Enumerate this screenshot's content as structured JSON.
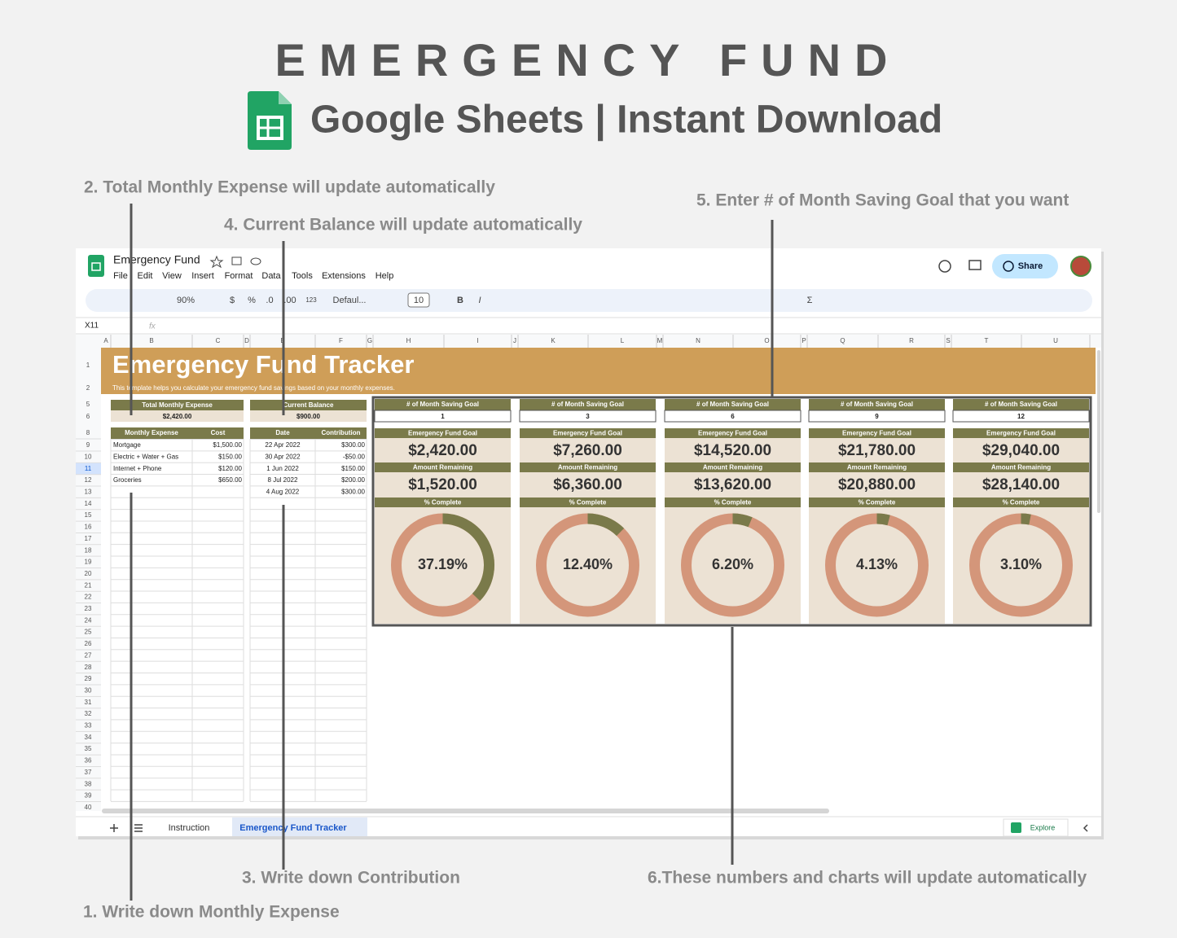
{
  "header": {
    "title": "EMERGENCY FUND",
    "subtitle": "Google Sheets | Instant Download"
  },
  "annotations": [
    "2. Total Monthly Expense will update automatically",
    "4. Current Balance will update automatically",
    "5. Enter # of Month Saving Goal that you want",
    "3. Write down Contribution",
    "6.These numbers and charts will update automatically",
    "1. Write down Monthly Expense"
  ],
  "app": {
    "doc_title": "Emergency Fund",
    "menu": [
      "File",
      "Edit",
      "View",
      "Insert",
      "Format",
      "Data",
      "Tools",
      "Extensions",
      "Help"
    ],
    "share": "Share",
    "toolbar": [
      "90%",
      "$",
      "%",
      ".0",
      ".00",
      "123",
      "Defaul...",
      "10",
      "B",
      "I",
      "Σ"
    ],
    "cell_ref": "X11",
    "formula_icon": "fx",
    "columns": [
      "A",
      "B",
      "C",
      "D",
      "E",
      "F",
      "G",
      "H",
      "I",
      "J",
      "K",
      "L",
      "M",
      "N",
      "O",
      "P",
      "Q",
      "R",
      "S",
      "T",
      "U"
    ],
    "rows": [
      1,
      2,
      5,
      6,
      8,
      9,
      10,
      11,
      12,
      13,
      14,
      15,
      16,
      17,
      18,
      19,
      20,
      21,
      22,
      23,
      24,
      25,
      26,
      27,
      28,
      29,
      30,
      31,
      32,
      33,
      34,
      35,
      36,
      37,
      38,
      39,
      40
    ],
    "tabs": [
      "Instruction",
      "Emergency Fund Tracker"
    ],
    "explore": "Explore"
  },
  "sheet": {
    "title": "Emergency Fund Tracker",
    "description": "This template helps you calculate your emergency fund savings based on your monthly expenses.",
    "total_expense": {
      "label": "Total Monthly Expense",
      "value": "$2,420.00"
    },
    "current_balance": {
      "label": "Current Balance",
      "value": "$900.00"
    },
    "expenses": {
      "headers": [
        "Monthly Expense",
        "Cost"
      ],
      "rows": [
        [
          "Mortgage",
          "$1,500.00"
        ],
        [
          "Electric + Water + Gas",
          "$150.00"
        ],
        [
          "Internet + Phone",
          "$120.00"
        ],
        [
          "Groceries",
          "$650.00"
        ]
      ]
    },
    "contributions": {
      "headers": [
        "Date",
        "Contribution"
      ],
      "rows": [
        [
          "22 Apr 2022",
          "$300.00"
        ],
        [
          "30 Apr 2022",
          "-$50.00"
        ],
        [
          "1 Jun 2022",
          "$150.00"
        ],
        [
          "8 Jul 2022",
          "$200.00"
        ],
        [
          "4 Aug 2022",
          "$300.00"
        ]
      ]
    },
    "goals": [
      {
        "months_label": "# of Month Saving Goal",
        "months": 1,
        "goal_label": "Emergency Fund Goal",
        "goal": "$2,420.00",
        "remaining_label": "Amount Remaining",
        "remaining": "$1,520.00",
        "complete_label": "% Complete",
        "percent": 37.19,
        "percent_label": "37.19%"
      },
      {
        "months_label": "# of Month Saving Goal",
        "months": 3,
        "goal_label": "Emergency Fund Goal",
        "goal": "$7,260.00",
        "remaining_label": "Amount Remaining",
        "remaining": "$6,360.00",
        "complete_label": "% Complete",
        "percent": 12.4,
        "percent_label": "12.40%"
      },
      {
        "months_label": "# of Month Saving Goal",
        "months": 6,
        "goal_label": "Emergency Fund Goal",
        "goal": "$14,520.00",
        "remaining_label": "Amount Remaining",
        "remaining": "$13,620.00",
        "complete_label": "% Complete",
        "percent": 6.2,
        "percent_label": "6.20%"
      },
      {
        "months_label": "# of Month Saving Goal",
        "months": 9,
        "goal_label": "Emergency Fund Goal",
        "goal": "$21,780.00",
        "remaining_label": "Amount Remaining",
        "remaining": "$20,880.00",
        "complete_label": "% Complete",
        "percent": 4.13,
        "percent_label": "4.13%"
      },
      {
        "months_label": "# of Month Saving Goal",
        "months": 12,
        "goal_label": "Emergency Fund Goal",
        "goal": "$29,040.00",
        "remaining_label": "Amount Remaining",
        "remaining": "$28,140.00",
        "complete_label": "% Complete",
        "percent": 3.1,
        "percent_label": "3.10%"
      }
    ]
  }
}
